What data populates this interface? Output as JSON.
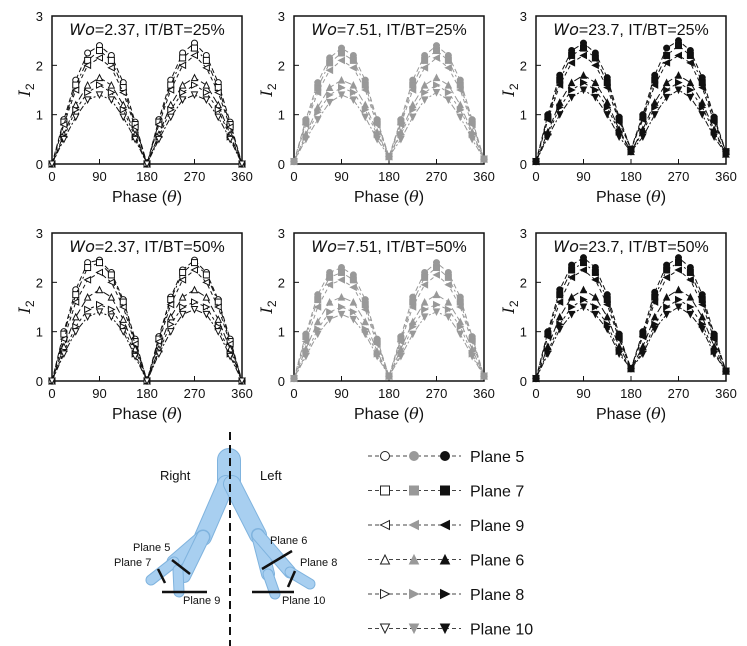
{
  "chart_data": {
    "type": "line",
    "x": [
      0,
      22.5,
      45,
      67.5,
      90,
      112.5,
      135,
      157.5,
      180,
      202.5,
      225,
      247.5,
      270,
      292.5,
      315,
      337.5,
      360
    ],
    "xlabel": "Phase (θ)",
    "xlabel_main": "Phase (",
    "xlabel_theta": "θ",
    "xlabel_close": ")",
    "ylabel": "I2",
    "ylabel_main": "I",
    "ylabel_sub": "2",
    "xlim": [
      0,
      360
    ],
    "ylim": [
      0,
      3
    ],
    "xticks": [
      0,
      90,
      180,
      270,
      360
    ],
    "yticks": [
      0,
      1,
      2,
      3
    ],
    "panels": [
      {
        "title_wo": "Wo",
        "title_rest": "=2.37, IT/BT=25%",
        "color": "#111111",
        "marker_fill": "open",
        "series": [
          {
            "name": "Plane 5",
            "values": [
              0,
              0.9,
              1.7,
              2.25,
              2.4,
              2.2,
              1.65,
              0.85,
              0,
              0.9,
              1.7,
              2.25,
              2.45,
              2.2,
              1.65,
              0.85,
              0
            ]
          },
          {
            "name": "Plane 7",
            "values": [
              0,
              0.85,
              1.6,
              2.1,
              2.3,
              2.1,
              1.55,
              0.8,
              0,
              0.85,
              1.6,
              2.15,
              2.35,
              2.1,
              1.55,
              0.8,
              0
            ]
          },
          {
            "name": "Plane 9",
            "values": [
              0,
              0.8,
              1.5,
              2.0,
              2.15,
              1.95,
              1.45,
              0.75,
              0,
              0.8,
              1.5,
              2.0,
              2.2,
              1.95,
              1.45,
              0.75,
              0
            ]
          },
          {
            "name": "Plane 6",
            "values": [
              0,
              0.6,
              1.2,
              1.6,
              1.75,
              1.6,
              1.2,
              0.6,
              0,
              0.6,
              1.2,
              1.6,
              1.75,
              1.6,
              1.2,
              0.6,
              0
            ]
          },
          {
            "name": "Plane 8",
            "values": [
              0,
              0.55,
              1.1,
              1.45,
              1.6,
              1.45,
              1.1,
              0.55,
              0,
              0.55,
              1.1,
              1.45,
              1.6,
              1.45,
              1.1,
              0.55,
              0
            ]
          },
          {
            "name": "Plane 10",
            "values": [
              0,
              0.5,
              0.95,
              1.3,
              1.4,
              1.3,
              0.95,
              0.5,
              0,
              0.5,
              0.95,
              1.3,
              1.4,
              1.3,
              0.95,
              0.5,
              0
            ]
          }
        ]
      },
      {
        "title_wo": "Wo",
        "title_rest": "=7.51, IT/BT=25%",
        "color": "#999999",
        "marker_fill": "filled",
        "series": [
          {
            "name": "Plane 5",
            "values": [
              0.05,
              0.9,
              1.65,
              2.15,
              2.35,
              2.2,
              1.7,
              0.9,
              0.15,
              0.9,
              1.7,
              2.2,
              2.4,
              2.2,
              1.7,
              0.9,
              0.1
            ]
          },
          {
            "name": "Plane 7",
            "values": [
              0.05,
              0.85,
              1.55,
              2.05,
              2.25,
              2.1,
              1.6,
              0.85,
              0.15,
              0.85,
              1.6,
              2.1,
              2.3,
              2.1,
              1.6,
              0.85,
              0.1
            ]
          },
          {
            "name": "Plane 9",
            "values": [
              0.05,
              0.8,
              1.45,
              1.9,
              2.1,
              1.95,
              1.5,
              0.8,
              0.15,
              0.8,
              1.5,
              1.95,
              2.15,
              1.95,
              1.5,
              0.8,
              0.1
            ]
          },
          {
            "name": "Plane 6",
            "values": [
              0.05,
              0.6,
              1.15,
              1.55,
              1.7,
              1.6,
              1.2,
              0.65,
              0.15,
              0.65,
              1.2,
              1.6,
              1.75,
              1.6,
              1.2,
              0.65,
              0.1
            ]
          },
          {
            "name": "Plane 8",
            "values": [
              0.05,
              0.55,
              1.05,
              1.4,
              1.55,
              1.45,
              1.1,
              0.6,
              0.15,
              0.6,
              1.1,
              1.45,
              1.6,
              1.45,
              1.1,
              0.6,
              0.1
            ]
          },
          {
            "name": "Plane 10",
            "values": [
              0.05,
              0.5,
              0.9,
              1.25,
              1.4,
              1.3,
              0.95,
              0.5,
              0.15,
              0.5,
              0.95,
              1.3,
              1.45,
              1.3,
              0.95,
              0.5,
              0.1
            ]
          }
        ]
      },
      {
        "title_wo": "Wo",
        "title_rest": "=23.7, IT/BT=25%",
        "color": "#111111",
        "marker_fill": "filled",
        "series": [
          {
            "name": "Plane 5",
            "values": [
              0.05,
              1.0,
              1.8,
              2.3,
              2.45,
              2.25,
              1.75,
              0.95,
              0.3,
              1.0,
              1.8,
              2.35,
              2.5,
              2.3,
              1.75,
              0.95,
              0.25
            ]
          },
          {
            "name": "Plane 7",
            "values": [
              0.05,
              0.95,
              1.7,
              2.2,
              2.35,
              2.15,
              1.65,
              0.9,
              0.3,
              0.95,
              1.7,
              2.2,
              2.4,
              2.2,
              1.65,
              0.9,
              0.25
            ]
          },
          {
            "name": "Plane 9",
            "values": [
              0.05,
              0.9,
              1.6,
              2.05,
              2.2,
              2.0,
              1.55,
              0.85,
              0.3,
              0.9,
              1.6,
              2.05,
              2.2,
              2.05,
              1.55,
              0.85,
              0.25
            ]
          },
          {
            "name": "Plane 6",
            "values": [
              0.05,
              0.65,
              1.25,
              1.65,
              1.8,
              1.65,
              1.25,
              0.7,
              0.25,
              0.7,
              1.25,
              1.65,
              1.8,
              1.65,
              1.25,
              0.7,
              0.2
            ]
          },
          {
            "name": "Plane 8",
            "values": [
              0.05,
              0.6,
              1.15,
              1.5,
              1.65,
              1.5,
              1.15,
              0.65,
              0.25,
              0.65,
              1.15,
              1.5,
              1.65,
              1.5,
              1.15,
              0.65,
              0.2
            ]
          },
          {
            "name": "Plane 10",
            "values": [
              0.05,
              0.55,
              1.0,
              1.35,
              1.5,
              1.35,
              1.0,
              0.55,
              0.25,
              0.55,
              1.0,
              1.35,
              1.5,
              1.35,
              1.0,
              0.55,
              0.2
            ]
          }
        ]
      },
      {
        "title_wo": "Wo",
        "title_rest": "=2.37, IT/BT=50%",
        "color": "#111111",
        "marker_fill": "open",
        "series": [
          {
            "name": "Plane 5",
            "values": [
              0,
              1.0,
              1.85,
              2.4,
              2.45,
              2.2,
              1.65,
              0.85,
              0,
              0.9,
              1.7,
              2.25,
              2.45,
              2.2,
              1.65,
              0.85,
              0
            ]
          },
          {
            "name": "Plane 7",
            "values": [
              0,
              0.95,
              1.75,
              2.3,
              2.4,
              2.15,
              1.6,
              0.8,
              0,
              0.85,
              1.65,
              2.2,
              2.4,
              2.15,
              1.6,
              0.8,
              0
            ]
          },
          {
            "name": "Plane 9",
            "values": [
              0,
              0.85,
              1.6,
              2.05,
              2.2,
              2.0,
              1.5,
              0.75,
              0,
              0.8,
              1.55,
              2.05,
              2.25,
              2.0,
              1.5,
              0.75,
              0
            ]
          },
          {
            "name": "Plane 6",
            "values": [
              0,
              0.7,
              1.3,
              1.7,
              1.85,
              1.7,
              1.25,
              0.65,
              0,
              0.65,
              1.3,
              1.7,
              1.85,
              1.7,
              1.25,
              0.65,
              0
            ]
          },
          {
            "name": "Plane 8",
            "values": [
              0,
              0.6,
              1.1,
              1.45,
              1.55,
              1.45,
              1.1,
              0.55,
              0,
              0.6,
              1.15,
              1.5,
              1.6,
              1.5,
              1.1,
              0.55,
              0
            ]
          },
          {
            "name": "Plane 10",
            "values": [
              0,
              0.55,
              1.0,
              1.3,
              1.4,
              1.3,
              1.0,
              0.5,
              0,
              0.55,
              1.0,
              1.35,
              1.45,
              1.35,
              1.0,
              0.5,
              0
            ]
          }
        ]
      },
      {
        "title_wo": "Wo",
        "title_rest": "=7.51, IT/BT=50%",
        "color": "#999999",
        "marker_fill": "filled",
        "series": [
          {
            "name": "Plane 5",
            "values": [
              0.05,
              0.95,
              1.75,
              2.2,
              2.3,
              2.15,
              1.65,
              0.85,
              0.1,
              0.9,
              1.7,
              2.2,
              2.4,
              2.2,
              1.7,
              0.9,
              0.1
            ]
          },
          {
            "name": "Plane 7",
            "values": [
              0.05,
              0.9,
              1.65,
              2.1,
              2.2,
              2.05,
              1.55,
              0.8,
              0.1,
              0.85,
              1.6,
              2.1,
              2.3,
              2.1,
              1.6,
              0.85,
              0.1
            ]
          },
          {
            "name": "Plane 9",
            "values": [
              0.05,
              0.8,
              1.5,
              1.95,
              2.05,
              1.9,
              1.45,
              0.75,
              0.1,
              0.8,
              1.5,
              1.95,
              2.15,
              1.95,
              1.5,
              0.8,
              0.1
            ]
          },
          {
            "name": "Plane 6",
            "values": [
              0.05,
              0.65,
              1.2,
              1.6,
              1.7,
              1.6,
              1.2,
              0.6,
              0.1,
              0.65,
              1.2,
              1.6,
              1.75,
              1.6,
              1.2,
              0.65,
              0.1
            ]
          },
          {
            "name": "Plane 8",
            "values": [
              0.05,
              0.55,
              1.05,
              1.4,
              1.5,
              1.4,
              1.05,
              0.55,
              0.1,
              0.55,
              1.1,
              1.45,
              1.55,
              1.45,
              1.1,
              0.55,
              0.1
            ]
          },
          {
            "name": "Plane 10",
            "values": [
              0.05,
              0.5,
              0.95,
              1.25,
              1.35,
              1.25,
              0.95,
              0.5,
              0.1,
              0.5,
              0.95,
              1.3,
              1.4,
              1.3,
              0.95,
              0.5,
              0.1
            ]
          }
        ]
      },
      {
        "title_wo": "Wo",
        "title_rest": "=23.7, IT/BT=50%",
        "color": "#111111",
        "marker_fill": "filled",
        "series": [
          {
            "name": "Plane 5",
            "values": [
              0.05,
              1.0,
              1.85,
              2.35,
              2.5,
              2.3,
              1.75,
              0.95,
              0.25,
              1.0,
              1.8,
              2.35,
              2.5,
              2.3,
              1.75,
              0.95,
              0.2
            ]
          },
          {
            "name": "Plane 7",
            "values": [
              0.05,
              0.95,
              1.75,
              2.25,
              2.4,
              2.2,
              1.65,
              0.9,
              0.25,
              0.95,
              1.7,
              2.25,
              2.4,
              2.2,
              1.65,
              0.9,
              0.2
            ]
          },
          {
            "name": "Plane 9",
            "values": [
              0.05,
              0.9,
              1.6,
              2.1,
              2.25,
              2.05,
              1.55,
              0.85,
              0.25,
              0.9,
              1.6,
              2.1,
              2.25,
              2.05,
              1.55,
              0.85,
              0.2
            ]
          },
          {
            "name": "Plane 6",
            "values": [
              0.05,
              0.7,
              1.3,
              1.7,
              1.85,
              1.7,
              1.3,
              0.7,
              0.25,
              0.7,
              1.3,
              1.7,
              1.85,
              1.7,
              1.3,
              0.7,
              0.2
            ]
          },
          {
            "name": "Plane 8",
            "values": [
              0.05,
              0.6,
              1.15,
              1.5,
              1.65,
              1.5,
              1.15,
              0.6,
              0.25,
              0.6,
              1.15,
              1.5,
              1.65,
              1.5,
              1.15,
              0.6,
              0.2
            ]
          },
          {
            "name": "Plane 10",
            "values": [
              0.05,
              0.55,
              1.05,
              1.35,
              1.5,
              1.35,
              1.05,
              0.55,
              0.25,
              0.55,
              1.05,
              1.35,
              1.5,
              1.35,
              1.05,
              0.55,
              0.2
            ]
          }
        ]
      }
    ]
  },
  "legend": {
    "entries": [
      {
        "label": "Plane 5",
        "marker": "circle"
      },
      {
        "label": "Plane 7",
        "marker": "square"
      },
      {
        "label": "Plane 9",
        "marker": "tri-left"
      },
      {
        "label": "Plane 6",
        "marker": "tri-up"
      },
      {
        "label": "Plane 8",
        "marker": "tri-right"
      },
      {
        "label": "Plane 10",
        "marker": "tri-down"
      }
    ],
    "column_colors": [
      "#222222",
      "#999999",
      "#111111"
    ]
  },
  "diagram": {
    "right_label": "Right",
    "left_label": "Left",
    "plane_labels": {
      "p5": "Plane 5",
      "p7": "Plane 7",
      "p9": "Plane 9",
      "p6": "Plane 6",
      "p8": "Plane 8",
      "p10": "Plane 10"
    },
    "airway_color": "#a8cff0"
  }
}
